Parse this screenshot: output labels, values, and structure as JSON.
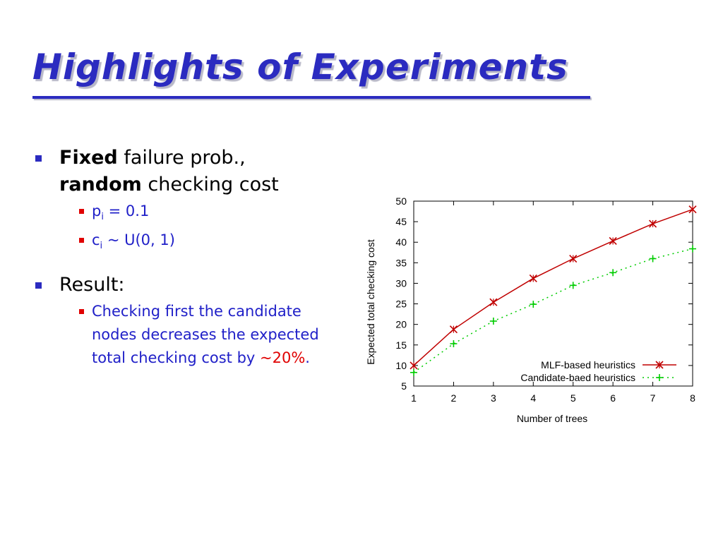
{
  "slide": {
    "title": "Highlights of Experiments",
    "bullet1": {
      "word1": "Fixed",
      "text1": " failure prob.,",
      "word2": "random",
      "text2": " checking cost"
    },
    "sub1": {
      "var": "p",
      "sub": "i",
      "rest": " = 0.1"
    },
    "sub2": {
      "var": "c",
      "sub": "i",
      "rest": " ~ U(0, 1)"
    },
    "bullet2": {
      "label": "Result:"
    },
    "sub3": {
      "text": "Checking first the candidate nodes decreases the expected total checking cost by ",
      "highlight": "~20%",
      "tail": "."
    }
  },
  "colors": {
    "title": "#2b2bc0",
    "bullet_square": "#2b2bc0",
    "sub_bullet_square": "#e00000",
    "sub_text": "#2020c8",
    "highlight": "#e00000",
    "series_mlf": "#c00000",
    "series_candidate": "#00cc00"
  },
  "chart_data": {
    "type": "line",
    "xlabel": "Number of trees",
    "ylabel": "Expected total checking cost",
    "x": [
      1,
      2,
      3,
      4,
      5,
      6,
      7,
      8
    ],
    "xlim": [
      1,
      8
    ],
    "ylim": [
      5,
      50
    ],
    "yticks": [
      5,
      10,
      15,
      20,
      25,
      30,
      35,
      40,
      45,
      50
    ],
    "grid": false,
    "legend_position": "bottom-right",
    "series": [
      {
        "name": "MLF-based heuristics",
        "values": [
          10,
          18.8,
          25.4,
          31.2,
          36,
          40.3,
          44.5,
          48
        ],
        "style": "solid",
        "marker": "x",
        "color": "#c00000"
      },
      {
        "name": "Candidate-baed heuristics",
        "values": [
          8.3,
          15.3,
          20.8,
          24.9,
          29.5,
          32.6,
          36,
          38.4
        ],
        "style": "dotted",
        "marker": "+",
        "color": "#00cc00"
      }
    ]
  }
}
